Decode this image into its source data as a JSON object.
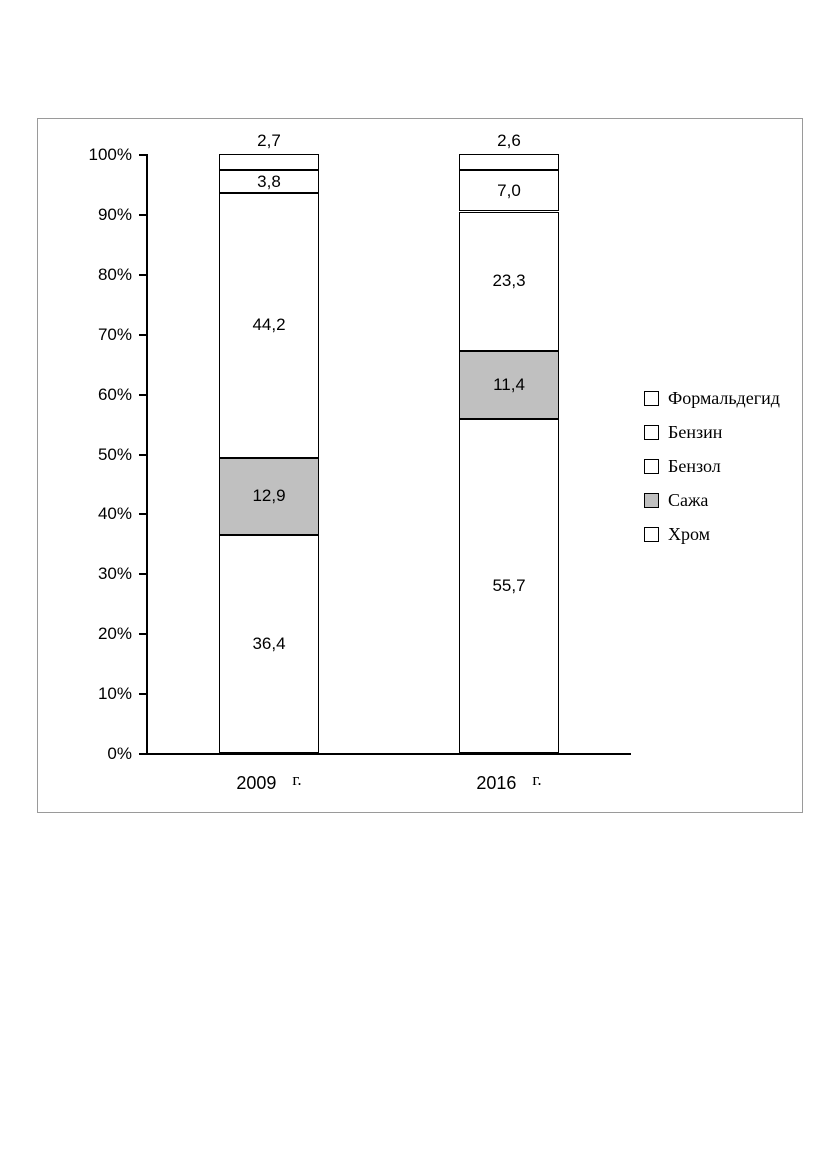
{
  "chart_data": {
    "type": "bar",
    "stacked": true,
    "percent": true,
    "title": "",
    "xlabel": "",
    "ylabel": "",
    "categories": [
      "2009",
      "2016"
    ],
    "category_suffix": "г.",
    "y_ticks": [
      "0%",
      "10%",
      "20%",
      "30%",
      "40%",
      "50%",
      "60%",
      "70%",
      "80%",
      "90%",
      "100%"
    ],
    "ylim": [
      0,
      100
    ],
    "grid": false,
    "legend_position": "right",
    "legend_order": [
      "Формальдегид",
      "Бензин",
      "Бензол",
      "Сажа",
      "Хром"
    ],
    "series": [
      {
        "name": "Хром",
        "color": "#ffffff",
        "values": [
          36.4,
          55.7
        ],
        "labels": [
          "36,4",
          "55,7"
        ],
        "label_position": "inside"
      },
      {
        "name": "Сажа",
        "color": "#c0c0c0",
        "values": [
          12.9,
          11.4
        ],
        "labels": [
          "12,9",
          "11,4"
        ],
        "label_position": "inside"
      },
      {
        "name": "Бензол",
        "color": "#ffffff",
        "values": [
          44.2,
          23.3
        ],
        "labels": [
          "44,2",
          "23,3"
        ],
        "label_position": "inside"
      },
      {
        "name": "Бензин",
        "color": "#ffffff",
        "values": [
          3.8,
          7.0
        ],
        "labels": [
          "3,8",
          "7,0"
        ],
        "label_position": "inside"
      },
      {
        "name": "Формальдегид",
        "color": "#ffffff",
        "values": [
          2.7,
          2.6
        ],
        "labels": [
          "2,7",
          "2,6"
        ],
        "label_position": "above"
      }
    ],
    "colors": {
      "segment_border": "#000000",
      "fill_default": "#ffffff",
      "fill_soot": "#c0c0c0",
      "frame_border": "#9a9a9a",
      "text": "#000000"
    }
  }
}
